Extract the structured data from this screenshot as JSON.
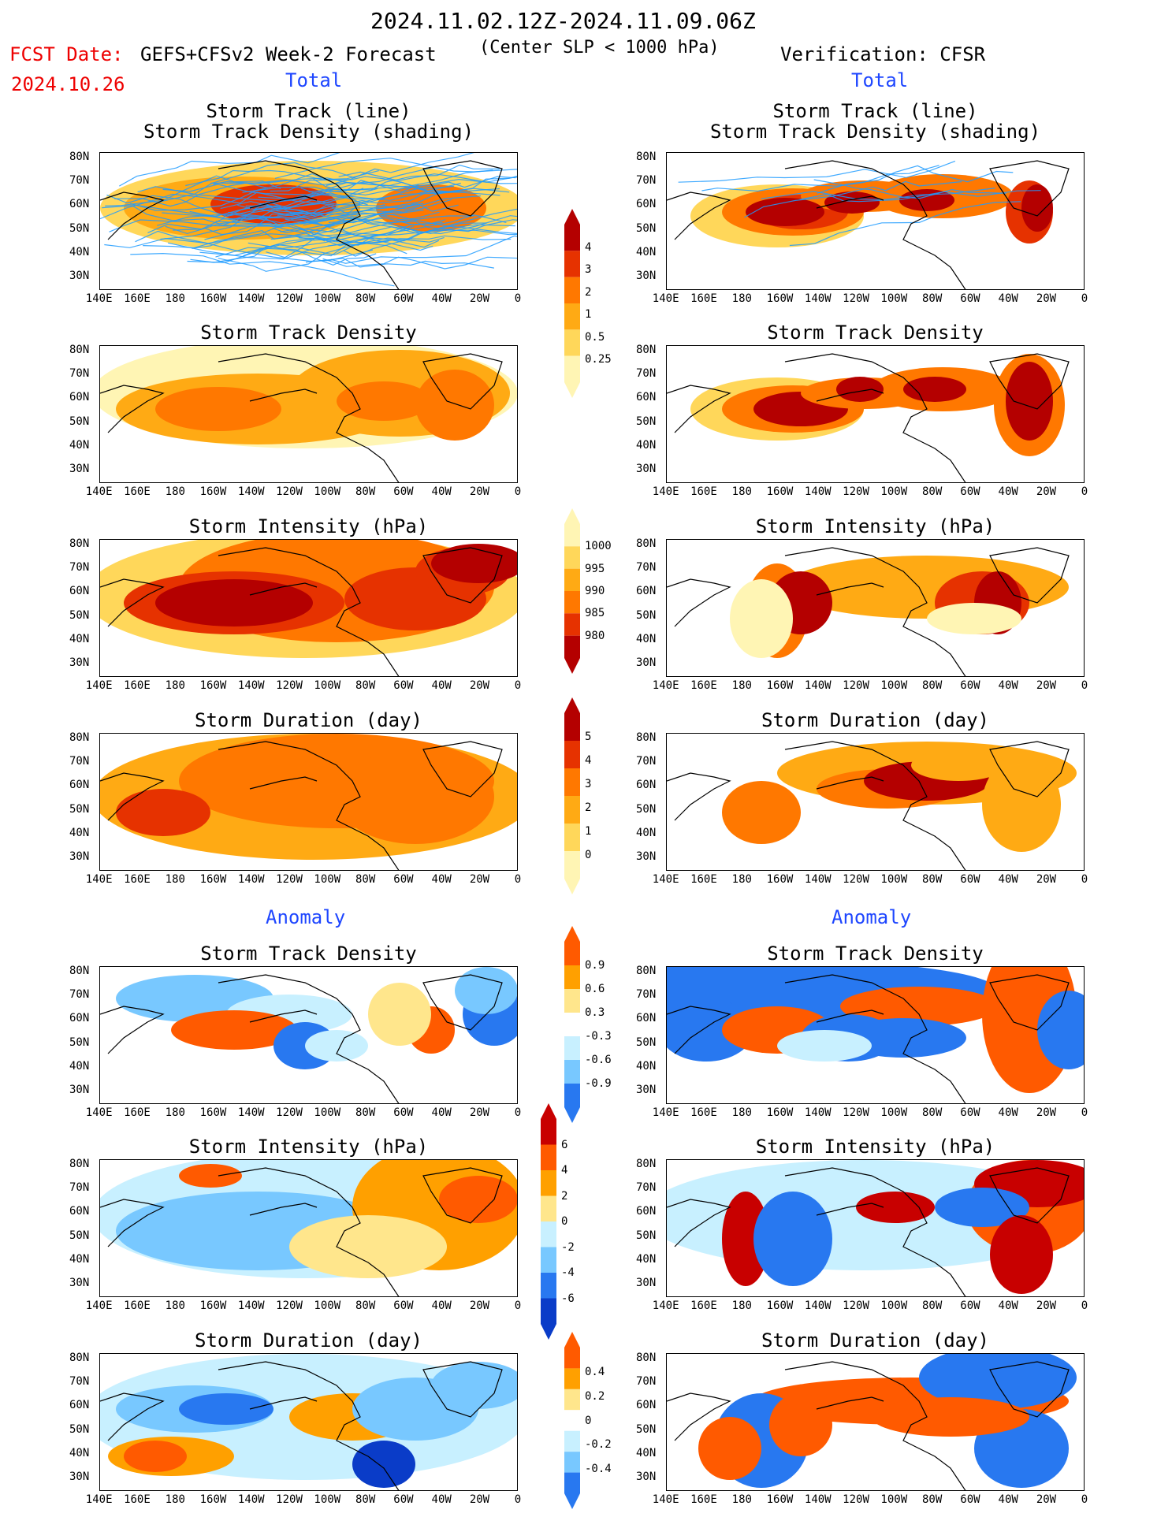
{
  "header": {
    "date_range": "2024.11.02.12Z-2024.11.09.06Z",
    "fcst_date_label": "FCST Date:",
    "forecast_model": "GEFS+CFSv2 Week-2 Forecast",
    "center_note": "(Center SLP < 1000 hPa)",
    "verification": "Verification: CFSR",
    "fcst_date": "2024.10.26"
  },
  "sections": {
    "total": "Total",
    "anomaly": "Anomaly"
  },
  "panel_titles": {
    "track_line": "Storm Track (line)",
    "track_shading": "Storm Track Density (shading)",
    "track_density": "Storm Track Density",
    "intensity": "Storm Intensity (hPa)",
    "duration": "Storm Duration (day)"
  },
  "axes": {
    "lat_ticks": [
      "80N",
      "70N",
      "60N",
      "50N",
      "40N",
      "30N"
    ],
    "lon_ticks": [
      "140E",
      "160E",
      "180",
      "160W",
      "140W",
      "120W",
      "100W",
      "80W",
      "60W",
      "40W",
      "20W",
      "0"
    ]
  },
  "colorbars": {
    "density_total": [
      "4",
      "3",
      "2",
      "1",
      "0.5",
      "0.25"
    ],
    "intensity_total": [
      "1000",
      "995",
      "990",
      "985",
      "980"
    ],
    "duration_total": [
      "5",
      "4",
      "3",
      "2",
      "1",
      "0"
    ],
    "density_anom": [
      "0.9",
      "0.6",
      "0.3",
      "-0.3",
      "-0.6",
      "-0.9"
    ],
    "intensity_anom": [
      "6",
      "4",
      "2",
      "0",
      "-2",
      "-4",
      "-6"
    ],
    "duration_anom": [
      "0.4",
      "0.2",
      "0",
      "-0.2",
      "-0.4"
    ]
  },
  "colors": {
    "fcst_red": "#e00000",
    "section_blue": "#1e46ff",
    "track_line": "#1e9bff",
    "total_scale": [
      "#fff5b4",
      "#ffd75a",
      "#ffaa14",
      "#ff7800",
      "#e63200",
      "#b40000"
    ],
    "anom_warm": [
      "#ffe68c",
      "#ffa000",
      "#ff5a00",
      "#c80000"
    ],
    "anom_cold": [
      "#c8f0ff",
      "#78c8ff",
      "#2878f0",
      "#0a3cc8"
    ]
  }
}
